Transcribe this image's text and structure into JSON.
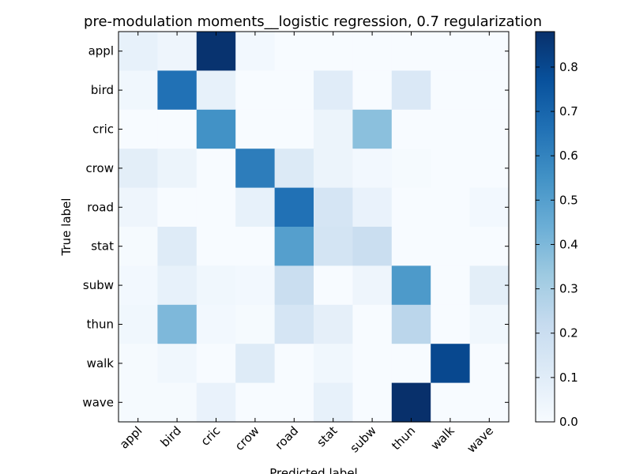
{
  "chart_data": {
    "type": "heatmap",
    "title": "pre-modulation moments__logistic regression, 0.7 regularization",
    "xlabel": "Predicted label",
    "ylabel": "True label",
    "x_categories": [
      "appl",
      "bird",
      "cric",
      "crow",
      "road",
      "stat",
      "subw",
      "thun",
      "walk",
      "wave"
    ],
    "y_categories": [
      "appl",
      "bird",
      "cric",
      "crow",
      "road",
      "stat",
      "subw",
      "thun",
      "walk",
      "wave"
    ],
    "values": [
      [
        0.07,
        0.04,
        0.87,
        0.02,
        0.0,
        0.0,
        0.0,
        0.0,
        0.0,
        0.0
      ],
      [
        0.03,
        0.66,
        0.07,
        0.0,
        0.0,
        0.1,
        0.0,
        0.13,
        0.0,
        0.0
      ],
      [
        0.0,
        0.0,
        0.55,
        0.0,
        0.0,
        0.05,
        0.37,
        0.0,
        0.0,
        0.0
      ],
      [
        0.09,
        0.05,
        0.0,
        0.62,
        0.12,
        0.05,
        0.02,
        0.01,
        0.0,
        0.0
      ],
      [
        0.04,
        0.0,
        0.0,
        0.07,
        0.66,
        0.15,
        0.06,
        0.0,
        0.0,
        0.02
      ],
      [
        0.01,
        0.11,
        0.0,
        0.0,
        0.5,
        0.16,
        0.2,
        0.0,
        0.0,
        0.0
      ],
      [
        0.02,
        0.07,
        0.03,
        0.02,
        0.2,
        0.0,
        0.04,
        0.52,
        0.0,
        0.09
      ],
      [
        0.03,
        0.4,
        0.02,
        0.01,
        0.15,
        0.08,
        0.0,
        0.25,
        0.0,
        0.03
      ],
      [
        0.01,
        0.03,
        0.0,
        0.11,
        0.0,
        0.03,
        0.0,
        0.0,
        0.8,
        0.0
      ],
      [
        0.01,
        0.01,
        0.06,
        0.0,
        0.0,
        0.07,
        0.0,
        0.88,
        0.0,
        0.0
      ]
    ],
    "colorbar": {
      "min": 0.0,
      "max": 0.88,
      "ticks": [
        "0.0",
        "0.1",
        "0.2",
        "0.3",
        "0.4",
        "0.5",
        "0.6",
        "0.7",
        "0.8"
      ],
      "tick_values": [
        0.0,
        0.1,
        0.2,
        0.3,
        0.4,
        0.5,
        0.6,
        0.7,
        0.8
      ]
    },
    "colormap": "Blues",
    "colormap_stops": [
      "#f7fbff",
      "#deebf7",
      "#c6dbef",
      "#9ecae1",
      "#6baed6",
      "#4292c6",
      "#2171b5",
      "#08519c",
      "#08306b"
    ]
  }
}
